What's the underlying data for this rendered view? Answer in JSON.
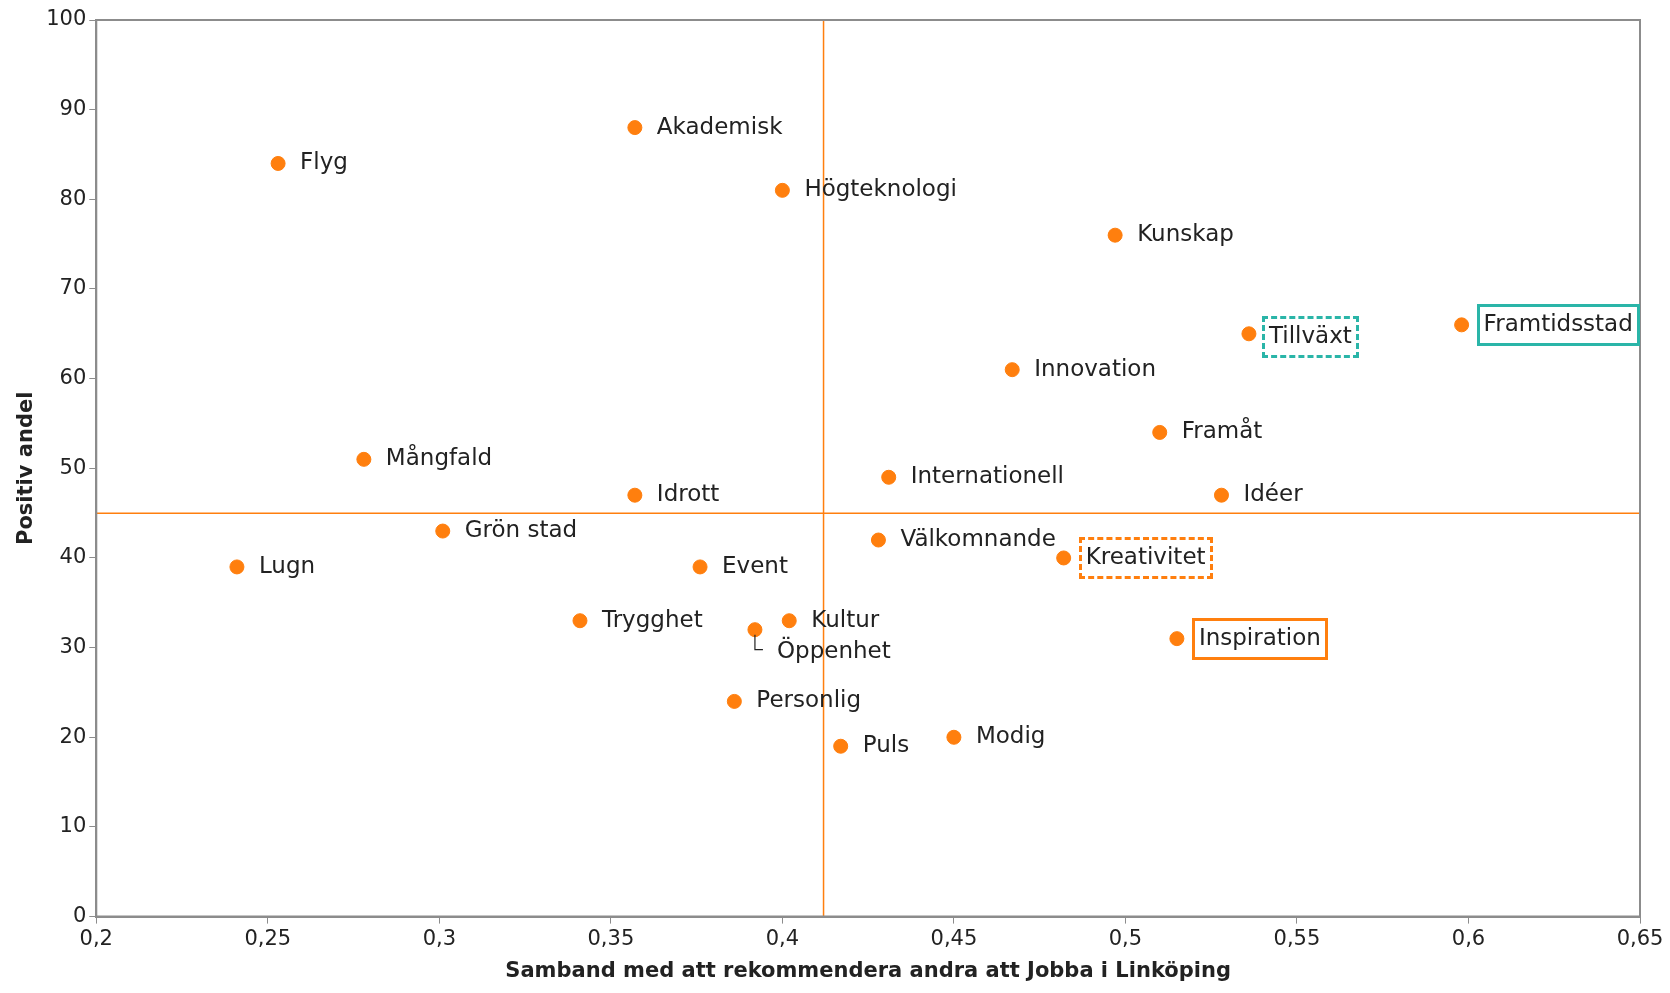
{
  "chart_data": {
    "type": "scatter",
    "xlabel": "Samband med att rekommendera andra att Jobba i Linköping",
    "ylabel": "Positiv andel",
    "series": [
      {
        "color": "#ff7f0e",
        "x": [
          0.253,
          0.357,
          0.4,
          0.497,
          0.536,
          0.598,
          0.467,
          0.51,
          0.278,
          0.431,
          0.357,
          0.528,
          0.301,
          0.428,
          0.241,
          0.376,
          0.482,
          0.341,
          0.402,
          0.392,
          0.515,
          0.386,
          0.417,
          0.45
        ],
        "values": [
          84,
          88,
          81,
          76,
          65,
          66,
          61,
          54,
          51,
          49,
          47,
          47,
          43,
          42,
          39,
          39,
          40,
          33,
          33,
          32,
          31,
          24,
          19,
          20
        ]
      }
    ],
    "marker": "circle",
    "grid": false,
    "legend": false,
    "xlim": [
      0.2,
      0.65
    ],
    "xticks": [
      {
        "value": 0.2,
        "label": "0,2"
      },
      {
        "value": 0.25,
        "label": "0,25"
      },
      {
        "value": 0.3,
        "label": "0,3"
      },
      {
        "value": 0.35,
        "label": "0,35"
      },
      {
        "value": 0.4,
        "label": "0,4"
      },
      {
        "value": 0.45,
        "label": "0,45"
      },
      {
        "value": 0.5,
        "label": "0,5"
      },
      {
        "value": 0.55,
        "label": "0,55"
      },
      {
        "value": 0.6,
        "label": "0,6"
      },
      {
        "value": 0.65,
        "label": "0,65"
      }
    ],
    "ylim": [
      0,
      100
    ],
    "yticks": [
      0,
      10,
      20,
      30,
      40,
      50,
      60,
      70,
      80,
      90,
      100
    ],
    "ref_lines": [
      {
        "axis": "x",
        "value": 0.412,
        "color": "#ff7f0e"
      },
      {
        "axis": "y",
        "value": 45,
        "color": "#ff7f0e"
      }
    ],
    "annotations": [
      {
        "text": "Flyg",
        "x": 0.253,
        "y": 84
      },
      {
        "text": "Akademisk",
        "x": 0.357,
        "y": 88
      },
      {
        "text": "Högteknologi",
        "x": 0.4,
        "y": 81
      },
      {
        "text": "Kunskap",
        "x": 0.497,
        "y": 76
      },
      {
        "text": "Tillväxt",
        "x": 0.536,
        "y": 65
      },
      {
        "text": "Framtidsstad",
        "x": 0.598,
        "y": 66
      },
      {
        "text": "Innovation",
        "x": 0.467,
        "y": 61
      },
      {
        "text": "Framåt",
        "x": 0.51,
        "y": 54
      },
      {
        "text": "Mångfald",
        "x": 0.278,
        "y": 51
      },
      {
        "text": "Internationell",
        "x": 0.431,
        "y": 49
      },
      {
        "text": "Idrott",
        "x": 0.357,
        "y": 47
      },
      {
        "text": "Idéer",
        "x": 0.528,
        "y": 47
      },
      {
        "text": "Grön stad",
        "x": 0.301,
        "y": 43
      },
      {
        "text": "Välkomnande",
        "x": 0.428,
        "y": 42
      },
      {
        "text": "Lugn",
        "x": 0.241,
        "y": 39
      },
      {
        "text": "Event",
        "x": 0.376,
        "y": 39
      },
      {
        "text": "Kreativitet",
        "x": 0.482,
        "y": 40
      },
      {
        "text": "Trygghet",
        "x": 0.341,
        "y": 33
      },
      {
        "text": "Kultur",
        "x": 0.402,
        "y": 33
      },
      {
        "text": "Öppenhet",
        "x": 0.392,
        "y": 32
      },
      {
        "text": "Inspiration",
        "x": 0.515,
        "y": 31
      },
      {
        "text": "Personlig",
        "x": 0.386,
        "y": 24
      },
      {
        "text": "Puls",
        "x": 0.417,
        "y": 19
      },
      {
        "text": "Modig",
        "x": 0.45,
        "y": 20
      }
    ]
  }
}
